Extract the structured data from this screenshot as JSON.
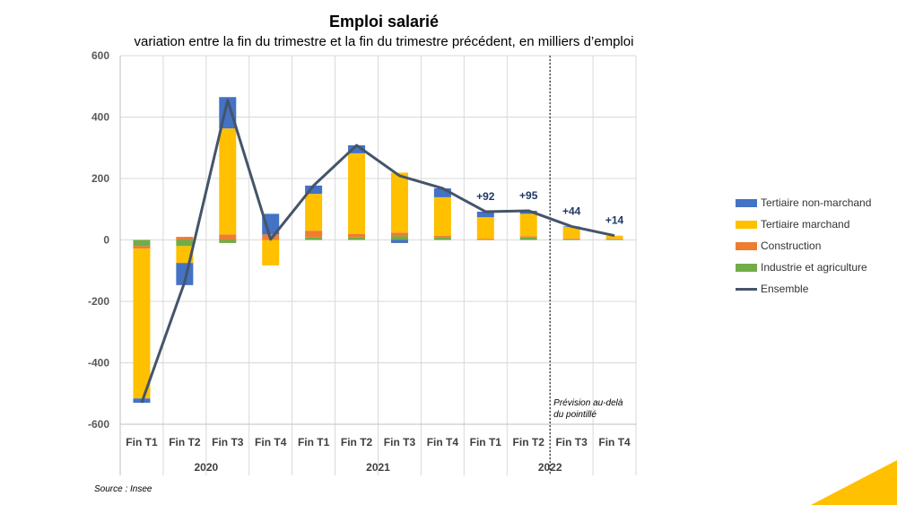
{
  "chart_data": {
    "type": "bar",
    "title": "Emploi salarié",
    "subtitle": "variation entre la fin du trimestre et la fin du trimestre précédent, en milliers d’emploi",
    "categories": [
      "Fin T1",
      "Fin T2",
      "Fin T3",
      "Fin T4",
      "Fin T1",
      "Fin T2",
      "Fin T3",
      "Fin T4",
      "Fin T1",
      "Fin T2",
      "Fin T3",
      "Fin T4"
    ],
    "year_groups": [
      {
        "label": "2020",
        "count": 4
      },
      {
        "label": "2021",
        "count": 4
      },
      {
        "label": "2022",
        "count": 4
      }
    ],
    "stacked": true,
    "ylim": [
      -600,
      600
    ],
    "yticks": [
      600,
      400,
      200,
      0,
      -200,
      -400,
      -600
    ],
    "grid": true,
    "legend_position": "right",
    "series": [
      {
        "name": "Industrie et agriculture",
        "color": "#70ad47",
        "values": [
          -20,
          -20,
          -10,
          0,
          8,
          8,
          12,
          8,
          0,
          8,
          2,
          2
        ]
      },
      {
        "name": "Construction",
        "color": "#ed7d31",
        "values": [
          -8,
          10,
          18,
          18,
          22,
          12,
          12,
          6,
          4,
          4,
          3,
          2
        ]
      },
      {
        "name": "Tertiaire marchand",
        "color": "#ffc000",
        "values": [
          -488,
          -55,
          345,
          -83,
          120,
          262,
          195,
          125,
          70,
          73,
          37,
          10
        ]
      },
      {
        "name": "Tertiaire non-marchand",
        "color": "#4472c4",
        "values": [
          -14,
          -72,
          102,
          67,
          27,
          26,
          -10,
          29,
          18,
          10,
          2,
          0
        ]
      }
    ],
    "line": {
      "name": "Ensemble",
      "color": "#44546a",
      "values": [
        -530,
        -137,
        455,
        2,
        177,
        308,
        209,
        168,
        92,
        95,
        44,
        14
      ]
    },
    "annotations": [
      {
        "index": 8,
        "text": "+92"
      },
      {
        "index": 9,
        "text": "+95"
      },
      {
        "index": 10,
        "text": "+44"
      },
      {
        "index": 11,
        "text": "+14"
      }
    ],
    "forecast_index": 10,
    "forecast_note": [
      "Prévision au-delà",
      "du pointillé"
    ],
    "legend_order": [
      "Tertiaire non-marchand",
      "Tertiaire marchand",
      "Construction",
      "Industrie et agriculture",
      "Ensemble"
    ]
  },
  "source": "Source : Insee"
}
